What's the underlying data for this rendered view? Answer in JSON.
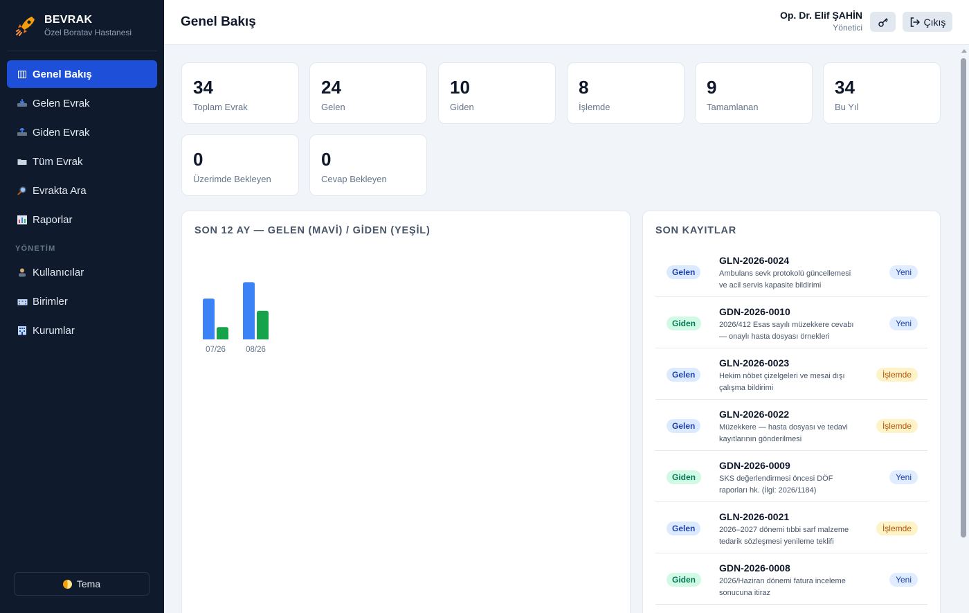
{
  "brand": {
    "name": "BEVRAK",
    "subtitle": "Özel Boratav Hastanesi"
  },
  "sidebar": {
    "items": [
      {
        "label": "Genel Bakış",
        "icon": "columns-icon",
        "active": true
      },
      {
        "label": "Gelen Evrak",
        "icon": "inbox-tray-icon"
      },
      {
        "label": "Giden Evrak",
        "icon": "outbox-tray-icon"
      },
      {
        "label": "Tüm Evrak",
        "icon": "folder-icon"
      },
      {
        "label": "Evrakta Ara",
        "icon": "magnifier-icon"
      },
      {
        "label": "Raporlar",
        "icon": "bar-chart-icon"
      }
    ],
    "section_label": "YÖNETİM",
    "admin_items": [
      {
        "label": "Kullanıcılar",
        "icon": "user-icon"
      },
      {
        "label": "Birimler",
        "icon": "office-icon"
      },
      {
        "label": "Kurumlar",
        "icon": "building-icon"
      }
    ],
    "theme_label": "Tema"
  },
  "header": {
    "title": "Genel Bakış",
    "user_name": "Op. Dr. Elif ŞAHİN",
    "user_role": "Yönetici",
    "logout_label": "Çıkış"
  },
  "stats": [
    {
      "value": "34",
      "label": "Toplam Evrak"
    },
    {
      "value": "24",
      "label": "Gelen"
    },
    {
      "value": "10",
      "label": "Giden"
    },
    {
      "value": "8",
      "label": "İşlemde"
    },
    {
      "value": "9",
      "label": "Tamamlanan"
    },
    {
      "value": "34",
      "label": "Bu Yıl"
    },
    {
      "value": "0",
      "label": "Üzerimde Bekleyen"
    },
    {
      "value": "0",
      "label": "Cevap Bekleyen"
    }
  ],
  "chart_panel": {
    "title": "SON 12 AY — GELEN (MAVİ) / GİDEN (YEŞİL)"
  },
  "chart_data": {
    "type": "bar",
    "categories": [
      "07/26",
      "08/26"
    ],
    "series": [
      {
        "name": "Gelen",
        "values": [
          10,
          14
        ],
        "color": "#3b82f6"
      },
      {
        "name": "Giden",
        "values": [
          3,
          7
        ],
        "color": "#16a34a"
      }
    ]
  },
  "recent": {
    "title": "SON KAYITLAR",
    "rows": [
      {
        "type": "Gelen",
        "code": "GLN-2026-0024",
        "desc": "Ambulans sevk protokolü güncellemesi ve acil servis kapasite bildirimi",
        "status": "Yeni"
      },
      {
        "type": "Giden",
        "code": "GDN-2026-0010",
        "desc": "2026/412 Esas sayılı müzekkere cevabı — onaylı hasta dosyası örnekleri",
        "status": "Yeni"
      },
      {
        "type": "Gelen",
        "code": "GLN-2026-0023",
        "desc": "Hekim nöbet çizelgeleri ve mesai dışı çalışma bildirimi",
        "status": "İşlemde"
      },
      {
        "type": "Gelen",
        "code": "GLN-2026-0022",
        "desc": "Müzekkere — hasta dosyası ve tedavi kayıtlarının gönderilmesi",
        "status": "İşlemde"
      },
      {
        "type": "Giden",
        "code": "GDN-2026-0009",
        "desc": "SKS değerlendirmesi öncesi DÖF raporları hk. (İlgi: 2026/1184)",
        "status": "Yeni"
      },
      {
        "type": "Gelen",
        "code": "GLN-2026-0021",
        "desc": "2026–2027 dönemi tıbbi sarf malzeme tedarik sözleşmesi yenileme teklifi",
        "status": "İşlemde"
      },
      {
        "type": "Giden",
        "code": "GDN-2026-0008",
        "desc": "2026/Haziran dönemi fatura inceleme sonucuna itiraz",
        "status": "Yeni"
      }
    ]
  }
}
